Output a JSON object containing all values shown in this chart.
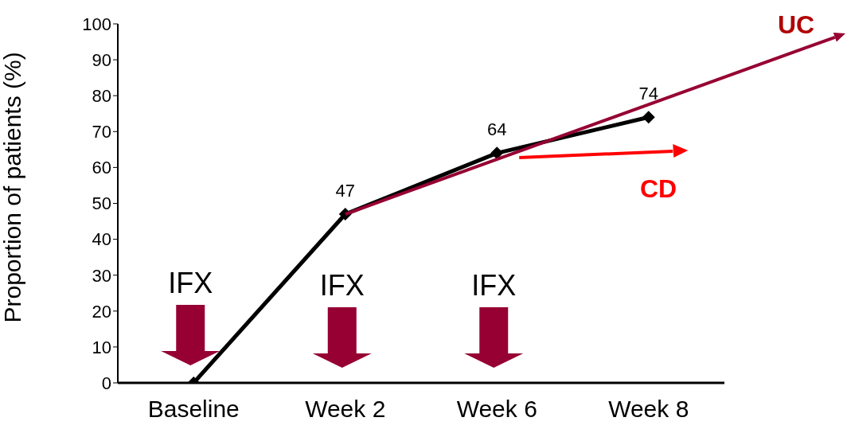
{
  "chart_data": {
    "type": "line",
    "ylabel": "Proportion of patients (%)",
    "categories": [
      "Baseline",
      "Week 2",
      "Week 6",
      "Week 8"
    ],
    "series": [
      {
        "color": "#000000",
        "values": [
          0,
          47,
          64,
          74
        ],
        "value_labels": [
          null,
          "47",
          "64",
          "74"
        ]
      }
    ],
    "ylim": [
      0,
      100
    ],
    "yticks": [
      0,
      10,
      20,
      30,
      40,
      50,
      60,
      70,
      80,
      90,
      100
    ],
    "marker": "diamond",
    "grid": false,
    "annotations": [
      {
        "text": "IFX",
        "x": "Baseline",
        "y": 0
      },
      "IFX",
      "IFX",
      "UC",
      "CD"
    ]
  }
}
